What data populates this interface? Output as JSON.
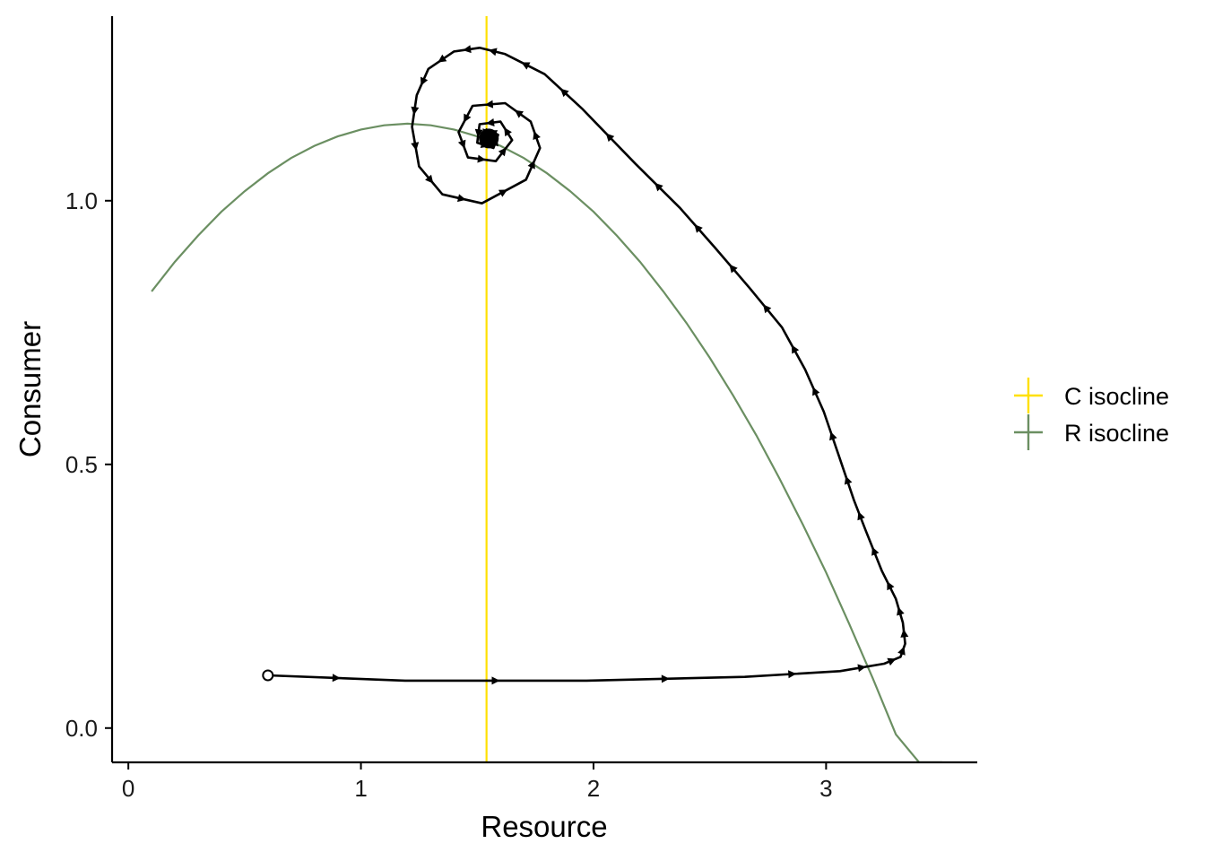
{
  "chart_data": {
    "type": "line",
    "title": "",
    "xlabel": "Resource",
    "ylabel": "Consumer",
    "xlim": [
      -0.07,
      3.65
    ],
    "ylim": [
      -0.065,
      1.35
    ],
    "x_ticks": [
      0,
      1,
      2,
      3
    ],
    "x_tick_labels": [
      "0",
      "1",
      "2",
      "3"
    ],
    "y_ticks": [
      0.0,
      0.5,
      1.0
    ],
    "y_tick_labels": [
      "0.0",
      "0.5",
      "1.0"
    ],
    "grid": false,
    "legend_position": "right",
    "legend": [
      {
        "label": "C isocline",
        "color": "#FFE000"
      },
      {
        "label": "R isocline",
        "color": "#6B8F62"
      }
    ],
    "series": [
      {
        "name": "C isocline",
        "kind": "vertical-line",
        "color": "#FFE000",
        "x": 1.54
      },
      {
        "name": "R isocline",
        "kind": "curve",
        "color": "#6B8F62",
        "x": [
          0.1,
          0.2,
          0.3,
          0.4,
          0.5,
          0.6,
          0.7,
          0.8,
          0.9,
          1.0,
          1.1,
          1.2,
          1.3,
          1.4,
          1.5,
          1.6,
          1.7,
          1.8,
          1.9,
          2.0,
          2.1,
          2.2,
          2.3,
          2.4,
          2.5,
          2.6,
          2.7,
          2.8,
          2.9,
          3.0,
          3.1,
          3.2,
          3.3,
          3.4,
          3.5
        ],
        "y": [
          0.828,
          0.884,
          0.934,
          0.979,
          1.018,
          1.052,
          1.081,
          1.104,
          1.122,
          1.135,
          1.143,
          1.146,
          1.143,
          1.135,
          1.122,
          1.104,
          1.081,
          1.052,
          1.018,
          0.979,
          0.934,
          0.884,
          0.828,
          0.768,
          0.702,
          0.631,
          0.555,
          0.473,
          0.386,
          0.295,
          0.197,
          0.095,
          -0.012,
          -0.124,
          -0.241
        ]
      },
      {
        "name": "",
        "kind": "trajectory",
        "color": "#000000",
        "start": {
          "x": 0.6,
          "y": 0.1
        },
        "points": [
          {
            "x": 0.6,
            "y": 0.1
          },
          {
            "x": 1.19,
            "y": 0.09
          },
          {
            "x": 1.97,
            "y": 0.09
          },
          {
            "x": 2.65,
            "y": 0.097
          },
          {
            "x": 3.06,
            "y": 0.108
          },
          {
            "x": 3.25,
            "y": 0.122
          },
          {
            "x": 3.32,
            "y": 0.135
          },
          {
            "x": 3.34,
            "y": 0.16
          },
          {
            "x": 3.33,
            "y": 0.2
          },
          {
            "x": 3.3,
            "y": 0.245
          },
          {
            "x": 3.24,
            "y": 0.298
          },
          {
            "x": 3.17,
            "y": 0.375
          },
          {
            "x": 3.12,
            "y": 0.432
          },
          {
            "x": 3.06,
            "y": 0.51
          },
          {
            "x": 2.99,
            "y": 0.6
          },
          {
            "x": 2.91,
            "y": 0.68
          },
          {
            "x": 2.81,
            "y": 0.76
          },
          {
            "x": 2.67,
            "y": 0.835
          },
          {
            "x": 2.52,
            "y": 0.912
          },
          {
            "x": 2.37,
            "y": 0.987
          },
          {
            "x": 2.18,
            "y": 1.07
          },
          {
            "x": 1.95,
            "y": 1.175
          },
          {
            "x": 1.79,
            "y": 1.24
          },
          {
            "x": 1.62,
            "y": 1.278
          },
          {
            "x": 1.51,
            "y": 1.29
          },
          {
            "x": 1.4,
            "y": 1.283
          },
          {
            "x": 1.29,
            "y": 1.25
          },
          {
            "x": 1.24,
            "y": 1.2
          },
          {
            "x": 1.22,
            "y": 1.14
          },
          {
            "x": 1.25,
            "y": 1.065
          },
          {
            "x": 1.35,
            "y": 1.012
          },
          {
            "x": 1.52,
            "y": 0.995
          },
          {
            "x": 1.71,
            "y": 1.04
          },
          {
            "x": 1.77,
            "y": 1.1
          },
          {
            "x": 1.73,
            "y": 1.15
          },
          {
            "x": 1.62,
            "y": 1.185
          },
          {
            "x": 1.48,
            "y": 1.18
          },
          {
            "x": 1.42,
            "y": 1.13
          },
          {
            "x": 1.46,
            "y": 1.082
          },
          {
            "x": 1.58,
            "y": 1.075
          },
          {
            "x": 1.65,
            "y": 1.115
          },
          {
            "x": 1.6,
            "y": 1.15
          },
          {
            "x": 1.51,
            "y": 1.145
          },
          {
            "x": 1.5,
            "y": 1.11
          },
          {
            "x": 1.57,
            "y": 1.1
          },
          {
            "x": 1.59,
            "y": 1.125
          },
          {
            "x": 1.54,
            "y": 1.135
          },
          {
            "x": 1.53,
            "y": 1.12
          },
          {
            "x": 1.55,
            "y": 1.118
          }
        ],
        "arrow_count": 44
      }
    ]
  }
}
